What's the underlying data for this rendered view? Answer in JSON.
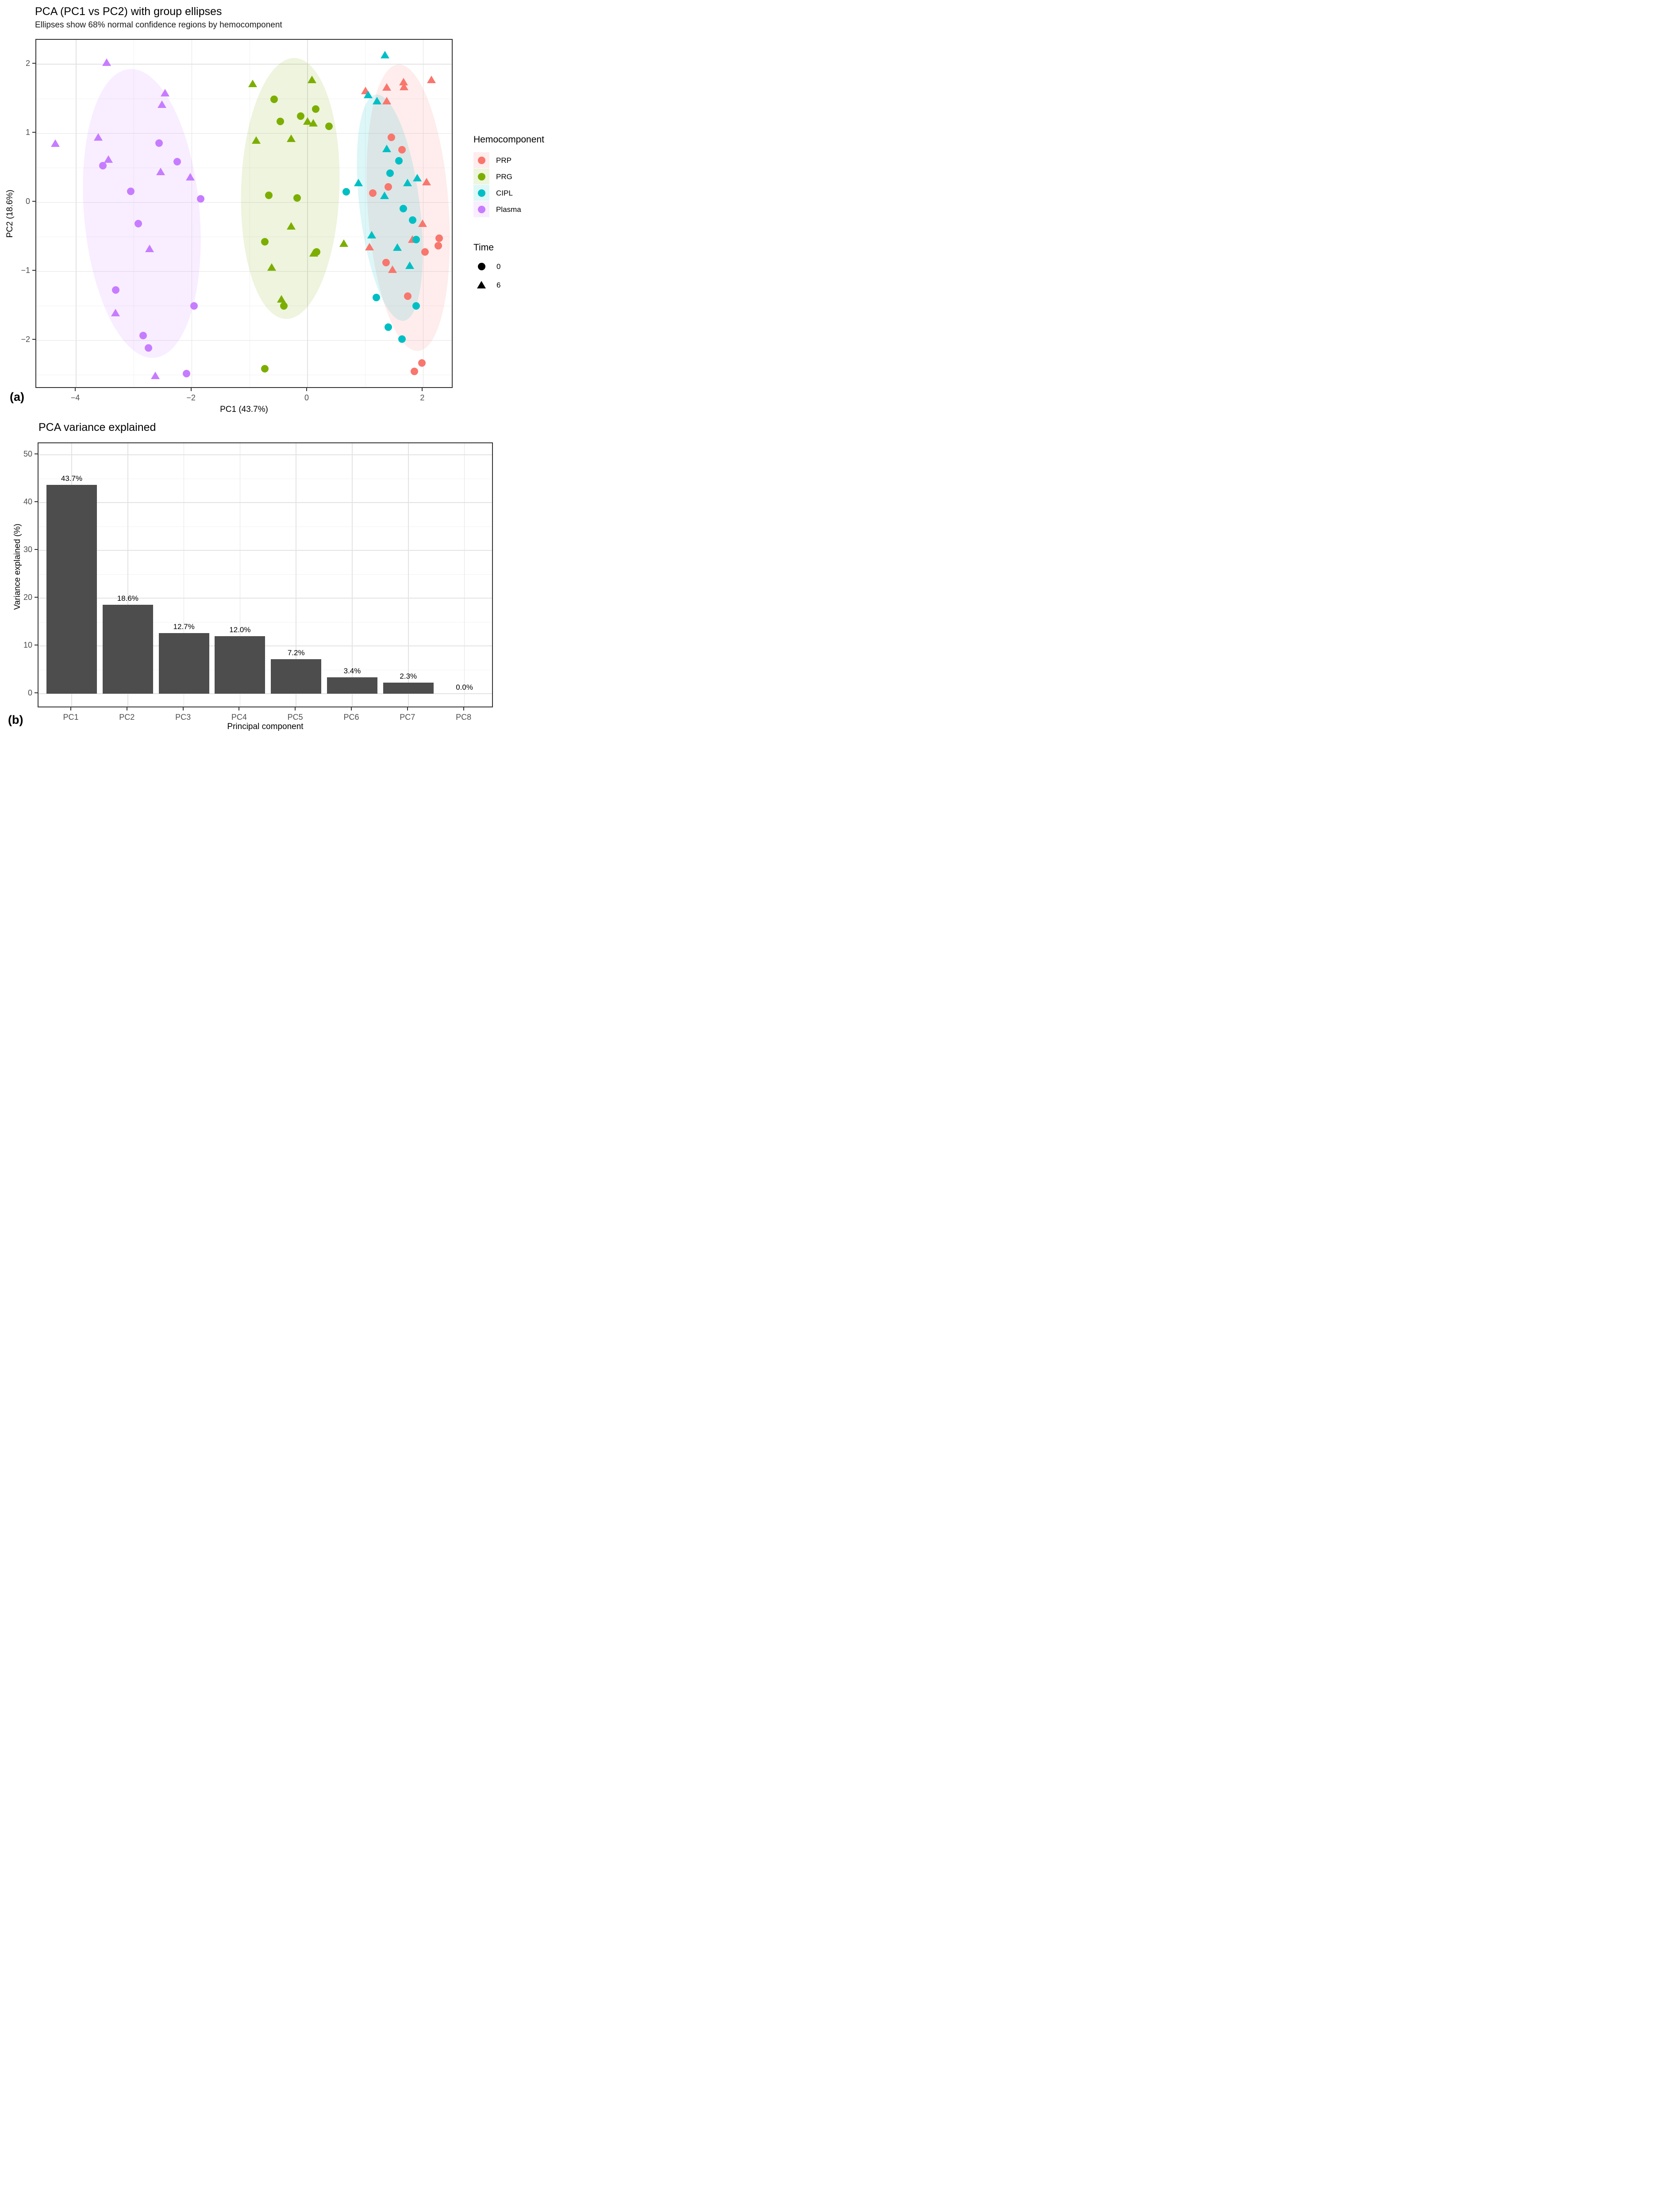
{
  "panel_a": {
    "title": "PCA (PC1 vs PC2) with group ellipses",
    "subtitle": "Ellipses show 68% normal confidence regions by hemocomponent",
    "tag": "(a)",
    "xlabel": "PC1 (43.7%)",
    "ylabel": "PC2 (18.6%)",
    "x_ticks": [
      {
        "v": -4,
        "label": "−4"
      },
      {
        "v": -2,
        "label": "−2"
      },
      {
        "v": 0,
        "label": "0"
      },
      {
        "v": 2,
        "label": "2"
      }
    ],
    "y_ticks": [
      {
        "v": 2,
        "label": "2"
      },
      {
        "v": 1,
        "label": "1"
      },
      {
        "v": 0,
        "label": "0"
      },
      {
        "v": -1,
        "label": "−1"
      },
      {
        "v": -2,
        "label": "−2"
      }
    ],
    "x_grid_minor": [
      -3,
      -1,
      1
    ],
    "y_grid_minor": [
      1.5,
      0.5,
      -0.5,
      -1.5,
      -2.5
    ]
  },
  "panel_b": {
    "title": "PCA variance explained",
    "tag": "(b)",
    "xlabel": "Principal component",
    "ylabel": "Variance explained (%)",
    "y_ticks": [
      {
        "v": 0,
        "label": "0"
      },
      {
        "v": 10,
        "label": "10"
      },
      {
        "v": 20,
        "label": "20"
      },
      {
        "v": 30,
        "label": "30"
      },
      {
        "v": 40,
        "label": "40"
      },
      {
        "v": 50,
        "label": "50"
      }
    ],
    "y_grid_minor": [
      5,
      15,
      25,
      35,
      45
    ]
  },
  "legend": {
    "hemocomponent_title": "Hemocomponent",
    "hemocomponent_items": [
      {
        "label": "PRP",
        "color": "#F8766D",
        "bg": "rgba(248,118,109,0.13)"
      },
      {
        "label": "PRG",
        "color": "#7CAE00",
        "bg": "rgba(124,174,0,0.13)"
      },
      {
        "label": "CIPL",
        "color": "#00BFC4",
        "bg": "rgba(0,191,196,0.13)"
      },
      {
        "label": "Plasma",
        "color": "#C77CFF",
        "bg": "rgba(199,124,255,0.13)"
      }
    ],
    "time_title": "Time",
    "time_items": [
      {
        "label": "0",
        "shape": "circle"
      },
      {
        "label": "6",
        "shape": "triangle"
      }
    ]
  },
  "chart_data": [
    {
      "type": "scatter",
      "title": "PCA (PC1 vs PC2) with group ellipses",
      "subtitle": "Ellipses show 68% normal confidence regions by hemocomponent",
      "xlabel": "PC1 (43.7%)",
      "ylabel": "PC2 (18.6%)",
      "xlim": [
        -4.69,
        2.53
      ],
      "ylim": [
        -2.7,
        2.35
      ],
      "grid": true,
      "legend_position": "right",
      "shape_encoding": {
        "0": "circle",
        "6": "triangle"
      },
      "series": [
        {
          "name": "PRP",
          "color": "#F8766D",
          "time0_points": [
            [
              1.45,
              0.94
            ],
            [
              1.63,
              0.76
            ],
            [
              1.4,
              0.22
            ],
            [
              1.13,
              0.13
            ],
            [
              2.28,
              -0.52
            ],
            [
              2.26,
              -0.63
            ],
            [
              2.03,
              -0.72
            ],
            [
              1.36,
              -0.87
            ],
            [
              1.73,
              -1.36
            ],
            [
              1.98,
              -2.33
            ],
            [
              1.85,
              -2.45
            ]
          ],
          "time6_points": [
            [
              1.66,
              1.74
            ],
            [
              1.67,
              1.67
            ],
            [
              2.14,
              1.77
            ],
            [
              1.37,
              1.66
            ],
            [
              1.0,
              1.61
            ],
            [
              1.37,
              1.46
            ],
            [
              2.06,
              0.29
            ],
            [
              1.81,
              -0.54
            ],
            [
              1.99,
              -0.31
            ],
            [
              1.07,
              -0.65
            ],
            [
              1.47,
              -0.98
            ]
          ],
          "ellipse": {
            "cx": 1.74,
            "cy": -0.08,
            "rx": 0.7,
            "ry": 2.08,
            "rot": -4
          }
        },
        {
          "name": "PRG",
          "color": "#7CAE00",
          "time0_points": [
            [
              -0.58,
              1.49
            ],
            [
              0.14,
              1.35
            ],
            [
              -0.12,
              1.25
            ],
            [
              -0.47,
              1.17
            ],
            [
              0.37,
              1.1
            ],
            [
              -0.67,
              0.1
            ],
            [
              -0.18,
              0.06
            ],
            [
              -0.74,
              -0.57
            ],
            [
              0.16,
              -0.72
            ],
            [
              -0.41,
              -1.5
            ],
            [
              -0.74,
              -2.41
            ]
          ],
          "time6_points": [
            [
              -0.95,
              1.71
            ],
            [
              0.08,
              1.77
            ],
            [
              0.0,
              1.17
            ],
            [
              0.1,
              1.14
            ],
            [
              -0.89,
              0.89
            ],
            [
              -0.28,
              0.92
            ],
            [
              -0.28,
              -0.35
            ],
            [
              0.11,
              -0.74
            ],
            [
              -0.62,
              -0.95
            ],
            [
              -0.45,
              -1.41
            ],
            [
              0.63,
              -0.6
            ]
          ],
          "ellipse": {
            "cx": -0.3,
            "cy": 0.2,
            "rx": 0.85,
            "ry": 1.89,
            "rot": 2
          }
        },
        {
          "name": "CIPL",
          "color": "#00BFC4",
          "time0_points": [
            [
              1.58,
              0.6
            ],
            [
              1.43,
              0.42
            ],
            [
              0.67,
              0.15
            ],
            [
              1.66,
              -0.09
            ],
            [
              1.82,
              -0.26
            ],
            [
              1.88,
              -0.54
            ],
            [
              1.19,
              -1.38
            ],
            [
              1.88,
              -1.5
            ],
            [
              1.4,
              -1.81
            ],
            [
              1.63,
              -1.98
            ]
          ],
          "time6_points": [
            [
              1.34,
              2.13
            ],
            [
              1.05,
              1.55
            ],
            [
              1.2,
              1.46
            ],
            [
              1.37,
              0.77
            ],
            [
              1.73,
              0.28
            ],
            [
              1.9,
              0.35
            ],
            [
              0.88,
              0.28
            ],
            [
              1.33,
              0.09
            ],
            [
              1.11,
              -0.48
            ],
            [
              1.55,
              -0.66
            ],
            [
              1.77,
              -0.92
            ]
          ],
          "ellipse": {
            "cx": 1.42,
            "cy": -0.08,
            "rx": 0.52,
            "ry": 1.65,
            "rot": -7
          }
        },
        {
          "name": "Plasma",
          "color": "#C77CFF",
          "time0_points": [
            [
              -3.54,
              0.53
            ],
            [
              -2.57,
              0.86
            ],
            [
              -2.25,
              0.59
            ],
            [
              -3.06,
              0.16
            ],
            [
              -1.85,
              0.05
            ],
            [
              -2.93,
              -0.31
            ],
            [
              -3.32,
              -1.27
            ],
            [
              -1.96,
              -1.5
            ],
            [
              -2.84,
              -1.93
            ],
            [
              -2.75,
              -2.11
            ],
            [
              -2.09,
              -2.48
            ]
          ],
          "time6_points": [
            [
              -3.47,
              2.02
            ],
            [
              -2.46,
              1.58
            ],
            [
              -2.52,
              1.41
            ],
            [
              -4.36,
              0.85
            ],
            [
              -3.62,
              0.94
            ],
            [
              -3.44,
              0.62
            ],
            [
              -2.54,
              0.44
            ],
            [
              -2.03,
              0.36
            ],
            [
              -2.73,
              -0.68
            ],
            [
              -3.32,
              -1.61
            ],
            [
              -2.63,
              -2.52
            ]
          ],
          "ellipse": {
            "cx": -2.86,
            "cy": -0.16,
            "rx": 1.0,
            "ry": 2.1,
            "rot": -5
          }
        }
      ]
    },
    {
      "type": "bar",
      "title": "PCA variance explained",
      "xlabel": "Principal component",
      "ylabel": "Variance explained (%)",
      "categories": [
        "PC1",
        "PC2",
        "PC3",
        "PC4",
        "PC5",
        "PC6",
        "PC7",
        "PC8"
      ],
      "values": [
        43.7,
        18.6,
        12.7,
        12.0,
        7.2,
        3.4,
        2.3,
        0.0
      ],
      "data_labels": [
        "43.7%",
        "18.6%",
        "12.7%",
        "12.0%",
        "7.2%",
        "3.4%",
        "2.3%",
        "0.0%"
      ],
      "bar_color": "#4d4d4d",
      "ylim": [
        0,
        52.4
      ],
      "grid": true
    }
  ]
}
